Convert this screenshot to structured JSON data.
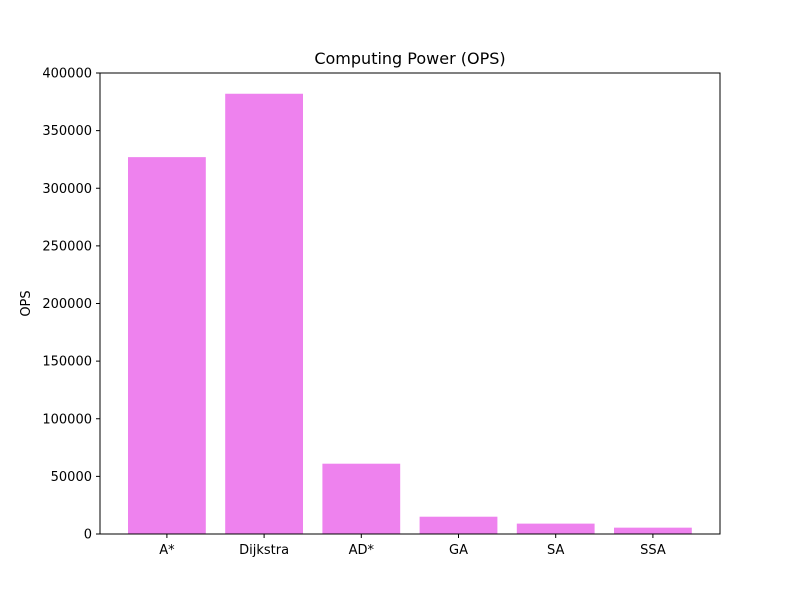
{
  "chart_data": {
    "type": "bar",
    "title": "Computing Power (OPS)",
    "xlabel": "",
    "ylabel": "OPS",
    "categories": [
      "A*",
      "Dijkstra",
      "AD*",
      "GA",
      "SA",
      "SSA"
    ],
    "values": [
      327000,
      382000,
      61000,
      15000,
      9000,
      5500
    ],
    "ylim": [
      0,
      400000
    ],
    "yticks": [
      0,
      50000,
      100000,
      150000,
      200000,
      250000,
      300000,
      350000,
      400000
    ],
    "bar_color": "#ee82ee",
    "grid": false,
    "legend": "none"
  }
}
